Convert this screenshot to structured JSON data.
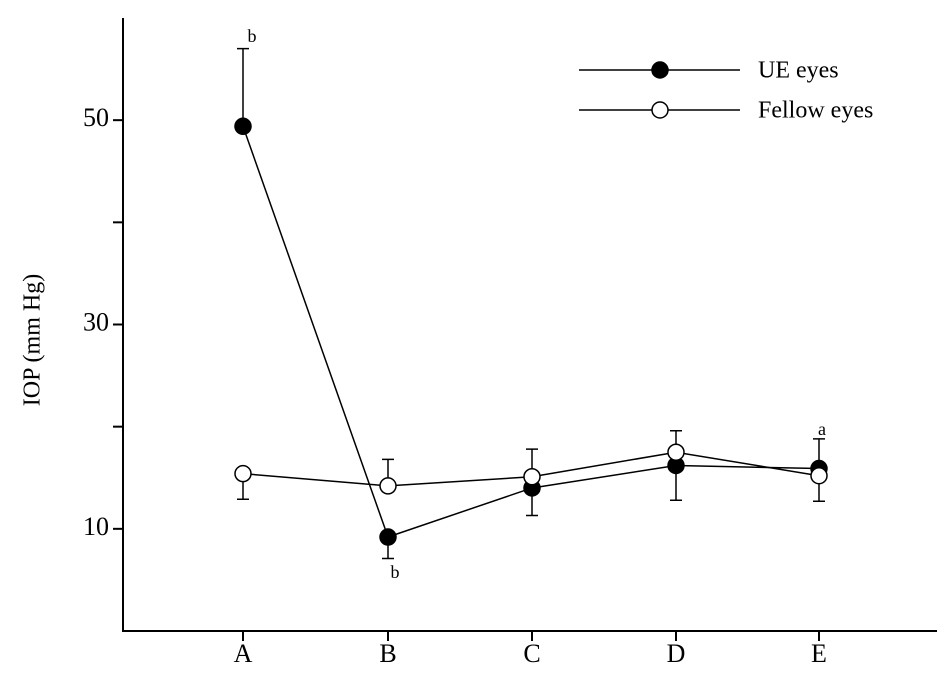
{
  "chart_data": {
    "type": "line",
    "y_label": "IOP (mm Hg)",
    "categories": [
      "A",
      "B",
      "C",
      "D",
      "E"
    ],
    "ylim": [
      0,
      60
    ],
    "yticks": [
      10,
      30,
      50
    ],
    "minor_yticks": [
      20,
      40
    ],
    "legend": "top-right",
    "series": [
      {
        "name": "UE eyes",
        "color": "#000000",
        "marker": "filled",
        "values": [
          49.4,
          9.2,
          14.0,
          16.2,
          15.9
        ],
        "errors": [
          7.6,
          2.1,
          2.7,
          3.4,
          2.9
        ],
        "error_sides": [
          "up",
          "down",
          "down",
          "down",
          "up"
        ]
      },
      {
        "name": "Fellow eyes",
        "color": "#000000",
        "marker": "open",
        "values": [
          15.4,
          14.2,
          15.1,
          17.5,
          15.2
        ],
        "errors": [
          2.5,
          2.6,
          2.7,
          2.1,
          2.5
        ],
        "error_sides": [
          "down",
          "up",
          "up",
          "up",
          "down"
        ]
      }
    ],
    "annotations": [
      "b",
      "b",
      "a"
    ]
  }
}
